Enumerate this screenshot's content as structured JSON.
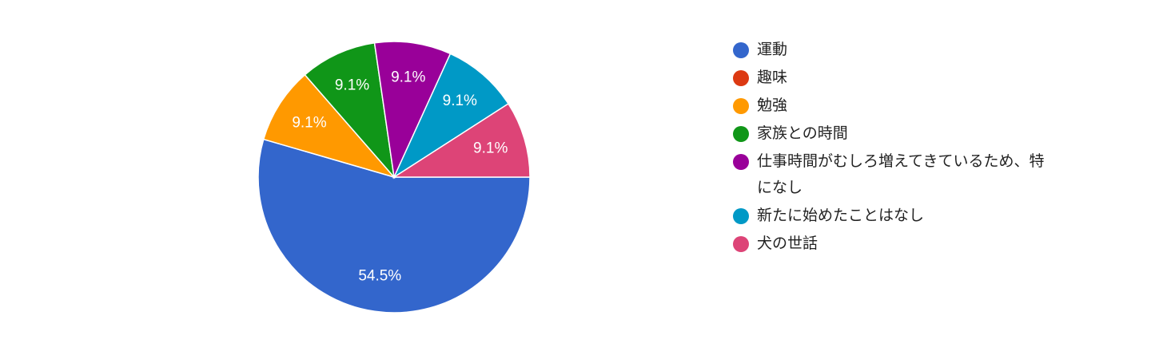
{
  "chart_data": {
    "type": "pie",
    "categories": [
      "運動",
      "趣味",
      "勉強",
      "家族との時間",
      "仕事時間がむしろ増えてきているため、特になし",
      "新たに始めたことはなし",
      "犬の世話"
    ],
    "values": [
      54.5,
      0,
      9.1,
      9.1,
      9.1,
      9.1,
      9.1
    ],
    "value_labels": [
      "54.5%",
      null,
      "9.1%",
      "9.1%",
      "9.1%",
      "9.1%",
      "9.1%"
    ],
    "colors": [
      "#3366cc",
      "#dc3912",
      "#ff9900",
      "#109618",
      "#990099",
      "#0099c6",
      "#dd4477"
    ],
    "legend": "right"
  }
}
